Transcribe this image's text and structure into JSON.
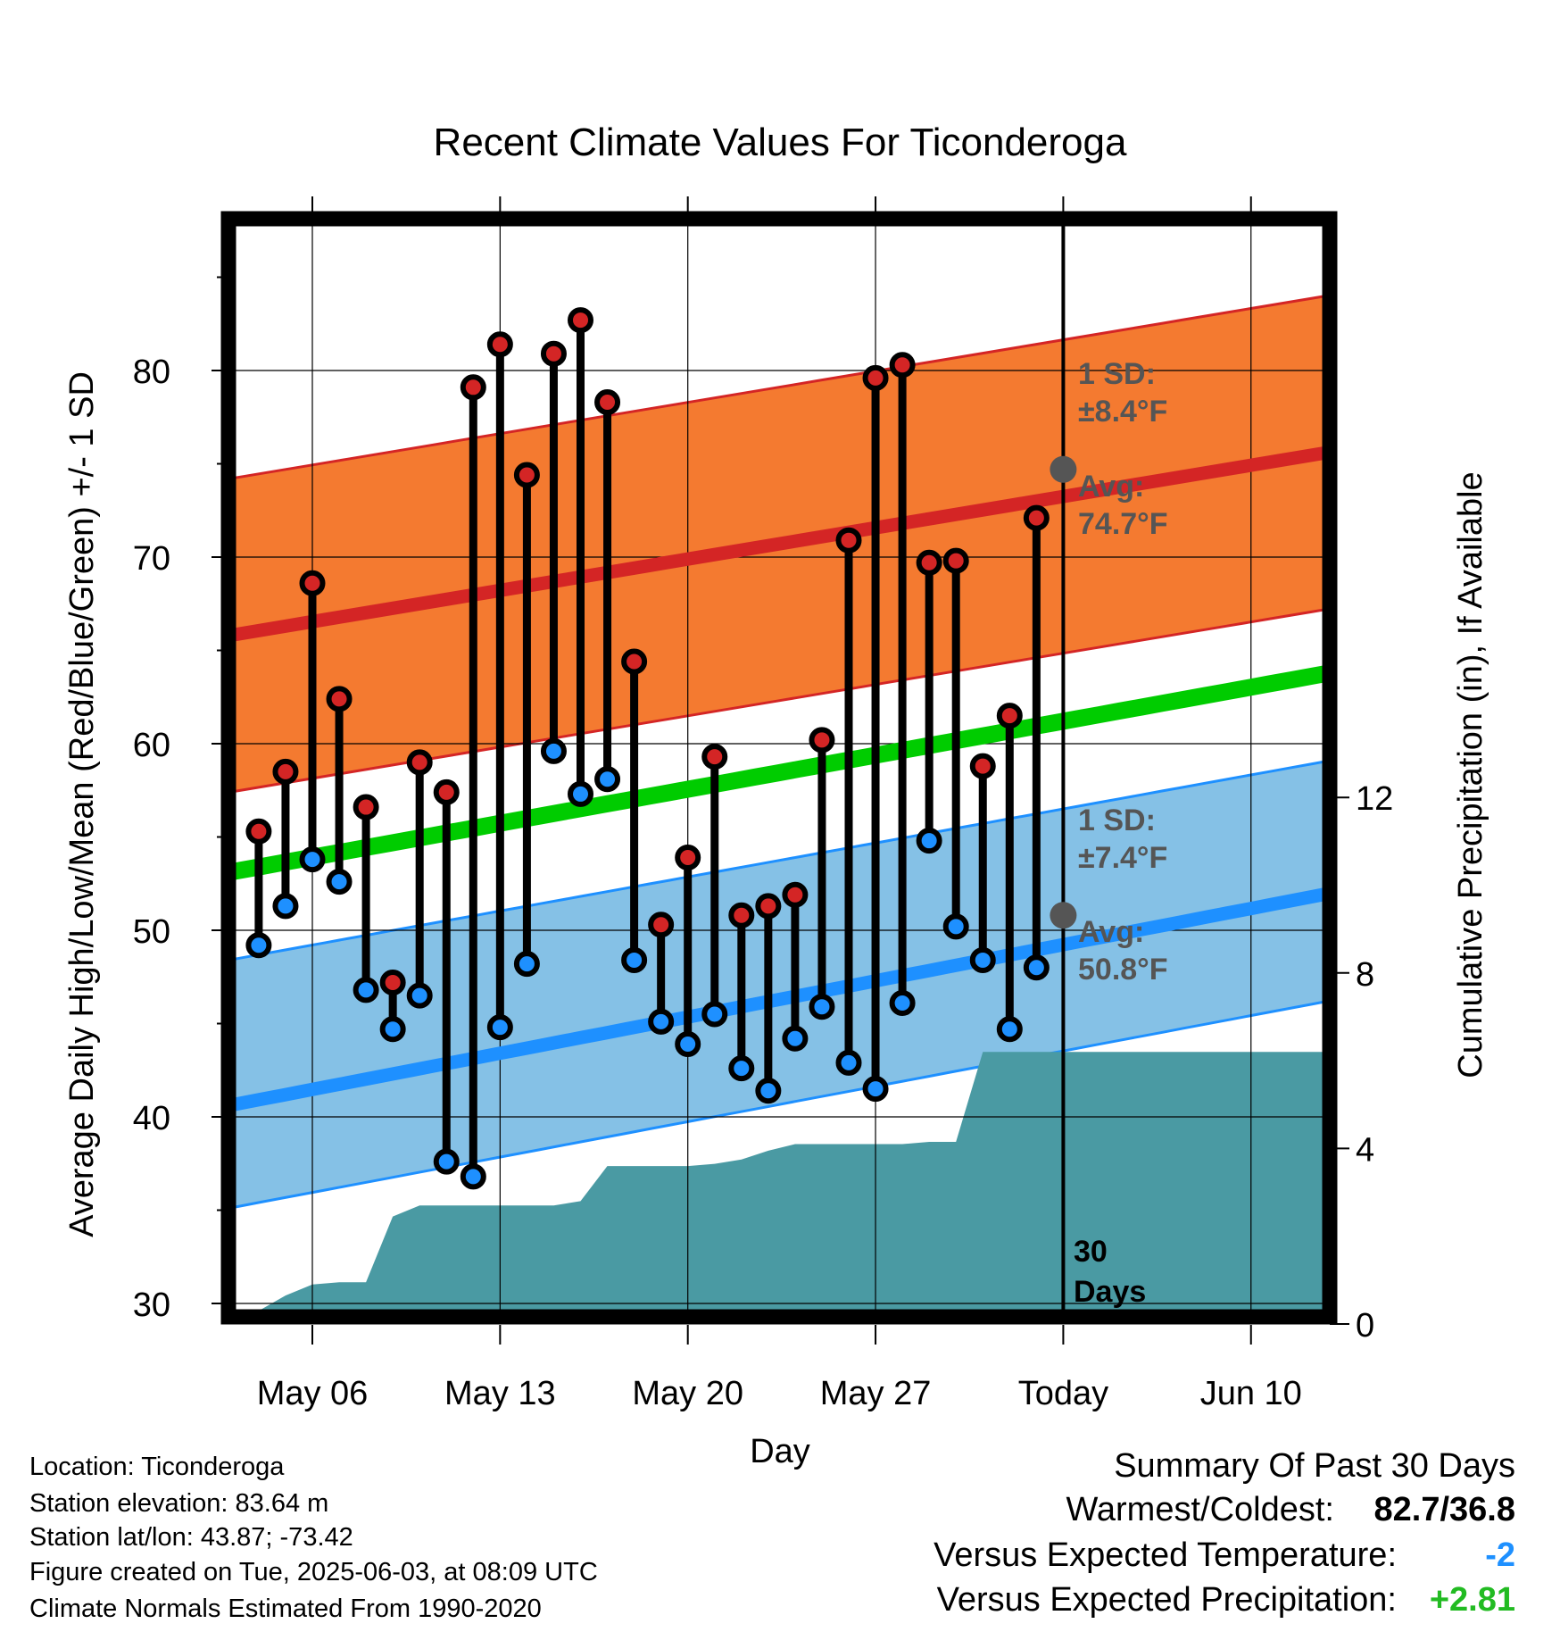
{
  "chart_data": {
    "type": "line",
    "title": "Recent Climate Values For Ticonderoga",
    "xlabel": "Day",
    "ylabel": "Average Daily High/Low/Mean (Red/Blue/Green) +/- 1 SD",
    "y2label": "Cumulative Precipitation (in), If Available",
    "ylim": [
      29,
      88
    ],
    "y2lim": [
      0,
      20.4
    ],
    "xlim": [
      -3.5,
      44.5
    ],
    "x_tick_labels": [
      {
        "x": 0,
        "label": "May 06"
      },
      {
        "x": 7,
        "label": "May 13"
      },
      {
        "x": 14,
        "label": "May 20"
      },
      {
        "x": 21,
        "label": "May 27"
      },
      {
        "x": 28,
        "label": "Today"
      },
      {
        "x": 35,
        "label": "Jun 10"
      }
    ],
    "y_ticks": [
      30,
      40,
      50,
      60,
      70,
      80
    ],
    "y_minor_ticks": [
      35,
      45,
      55,
      65,
      75,
      85
    ],
    "y2_ticks": [
      0,
      4,
      8,
      12
    ],
    "today_x": 28,
    "today_label": "30 Days",
    "grid": true,
    "normals": {
      "high_mean_start": 65.7,
      "high_mean_end": 77.2,
      "high_sd": 8.4,
      "low_mean_start": 40.5,
      "low_mean_end": 53.8,
      "low_sd_lower_start": 35.0,
      "low_sd_upper_start": 48.3,
      "low_sd_lower_end": 48.0,
      "low_sd_upper_end": 60.8,
      "mean_start": 53.0,
      "mean_end": 65.5
    },
    "series": [
      {
        "name": "High",
        "x": [
          -2,
          -1,
          0,
          1,
          2,
          3,
          4,
          5,
          6,
          7,
          8,
          9,
          10,
          11,
          12,
          13,
          14,
          15,
          16,
          17,
          18,
          19,
          20,
          21,
          22,
          23,
          24,
          25,
          26,
          27
        ],
        "values": [
          55.3,
          58.5,
          68.6,
          62.4,
          56.6,
          47.2,
          59.0,
          57.4,
          79.1,
          81.4,
          74.4,
          80.9,
          82.7,
          78.3,
          64.4,
          50.3,
          53.9,
          59.3,
          50.8,
          51.3,
          51.9,
          60.2,
          70.9,
          79.6,
          80.3,
          69.7,
          69.8,
          58.8,
          61.5,
          72.1
        ]
      },
      {
        "name": "Low",
        "x": [
          -2,
          -1,
          0,
          1,
          2,
          3,
          4,
          5,
          6,
          7,
          8,
          9,
          10,
          11,
          12,
          13,
          14,
          15,
          16,
          17,
          18,
          19,
          20,
          21,
          22,
          23,
          24,
          25,
          26,
          27
        ],
        "values": [
          49.2,
          51.3,
          53.8,
          52.6,
          46.8,
          44.7,
          46.5,
          37.6,
          36.8,
          44.8,
          48.2,
          59.6,
          57.3,
          58.1,
          48.4,
          45.1,
          43.9,
          45.5,
          42.6,
          41.4,
          44.2,
          45.9,
          42.9,
          41.5,
          46.1,
          54.8,
          50.2,
          48.4,
          44.7,
          48.0
        ]
      },
      {
        "name": "Cumulative Precipitation",
        "x": [
          -3,
          -2,
          -1,
          0,
          1,
          2,
          3,
          4,
          5,
          6,
          7,
          8,
          9,
          10,
          11,
          12,
          13,
          14,
          15,
          16,
          17,
          18,
          19,
          20,
          21,
          22,
          23,
          24,
          25,
          26,
          27,
          28,
          30,
          35,
          44
        ],
        "values": [
          0,
          0.3,
          0.65,
          0.9,
          0.95,
          0.95,
          2.45,
          2.7,
          2.7,
          2.7,
          2.7,
          2.7,
          2.7,
          2.8,
          3.6,
          3.6,
          3.6,
          3.6,
          3.65,
          3.75,
          3.95,
          4.1,
          4.1,
          4.1,
          4.1,
          4.1,
          4.15,
          4.15,
          6.2,
          6.2,
          6.2,
          6.2,
          6.2,
          6.2,
          6.2
        ]
      }
    ],
    "annotations": {
      "high_sd_label": "1 SD:",
      "high_sd_value": "±8.4°F",
      "high_avg_label": "Avg:",
      "high_avg_value": "74.7°F",
      "high_avg_today": 74.7,
      "low_sd_label": "1 SD:",
      "low_sd_value": "±7.4°F",
      "low_avg_label": "Avg:",
      "low_avg_value": "50.8°F",
      "low_avg_today": 50.8,
      "days_num": "30",
      "days_word": "Days"
    },
    "colors": {
      "high_band": "#f47a30",
      "high_line": "#d42525",
      "low_band": "#85c1e6",
      "low_line": "#1e90ff",
      "mean_line": "#00cc00",
      "precip": "#4a9aa3",
      "high_dot": "#d42525",
      "low_dot": "#1e90ff"
    }
  },
  "info": {
    "location": "Location: Ticonderoga",
    "elevation": "Station elevation: 83.64 m",
    "latlon": "Station lat/lon: 43.87; -73.42",
    "created": "Figure created on Tue, 2025-06-03, at 08:09 UTC",
    "normals": "Climate Normals Estimated From 1990-2020"
  },
  "summary": {
    "heading": "Summary Of Past 30 Days",
    "warm_label": "Warmest/Coldest:",
    "warm_value": "82.7/36.8",
    "temp_label": "Versus Expected Temperature:",
    "temp_value": "-2",
    "temp_color": "#1e90ff",
    "precip_label": "Versus Expected Precipitation:",
    "precip_value": "+2.81",
    "precip_color": "#22bb22"
  }
}
